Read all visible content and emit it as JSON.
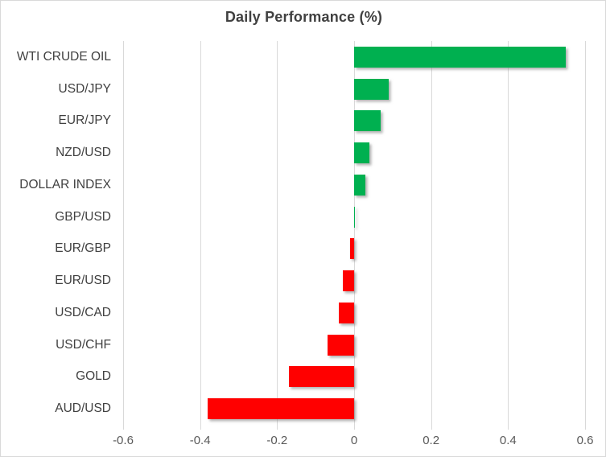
{
  "chart_data": {
    "type": "bar",
    "orientation": "horizontal",
    "title": "Daily Performance (%)",
    "categories": [
      "WTI CRUDE OIL",
      "USD/JPY",
      "EUR/JPY",
      "NZD/USD",
      "DOLLAR INDEX",
      "GBP/USD",
      "EUR/GBP",
      "EUR/USD",
      "USD/CAD",
      "USD/CHF",
      "GOLD",
      "AUD/USD"
    ],
    "values": [
      0.55,
      0.09,
      0.07,
      0.04,
      0.03,
      0.0,
      -0.01,
      -0.03,
      -0.04,
      -0.07,
      -0.17,
      -0.38
    ],
    "xlabel": "",
    "ylabel": "",
    "xlim": [
      -0.6,
      0.6
    ],
    "x_ticks": [
      -0.6,
      -0.4,
      -0.2,
      0,
      0.2,
      0.4,
      0.6
    ],
    "x_tick_labels": [
      "-0.6",
      "-0.4",
      "-0.2",
      "0",
      "0.2",
      "0.4",
      "0.6"
    ],
    "grid": true,
    "legend": false,
    "colors": {
      "positive_bar": "#00B050",
      "negative_bar": "#FF0000",
      "gridline": "#D9D9D9",
      "title_text": "#404040",
      "category_text": "#404040",
      "axis_text": "#595959",
      "chart_border": "#D9D9D9",
      "background": "#FFFFFF"
    }
  }
}
